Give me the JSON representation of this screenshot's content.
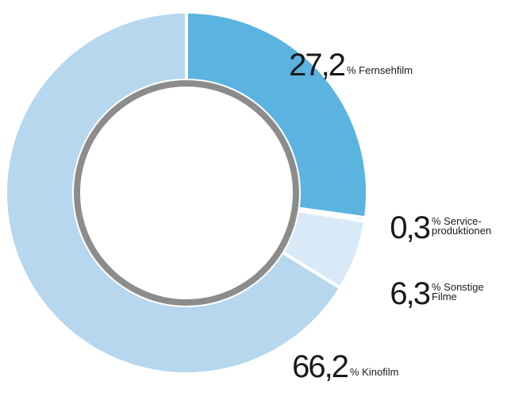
{
  "chart_data": {
    "type": "donut",
    "categories": [
      [
        "% Fernsehfilm"
      ],
      [
        "% Service-",
        "produktionen"
      ],
      [
        "% Sonstige",
        "Filme"
      ],
      [
        "% Kinofilm"
      ]
    ],
    "values": [
      27.2,
      0.3,
      6.3,
      66.2
    ],
    "value_labels": [
      "27,2",
      "0,3",
      "6,3",
      "66,2"
    ],
    "colors": [
      "#5bb3e0",
      "#1699d5",
      "#d8eaf7",
      "#b6d7ee"
    ]
  }
}
